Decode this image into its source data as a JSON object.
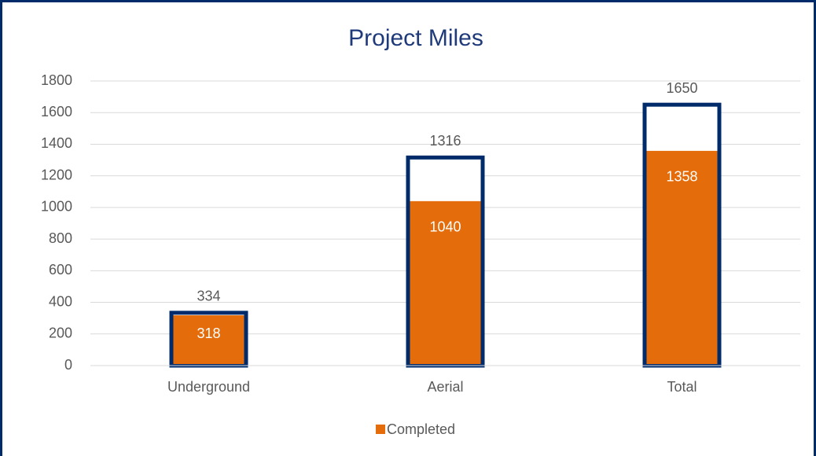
{
  "chart_data": {
    "type": "bar",
    "title": "Project Miles",
    "categories": [
      "Underground",
      "Aerial",
      "Total"
    ],
    "series": [
      {
        "color": "#002b6b",
        "values": [
          334,
          1316,
          1650
        ]
      },
      {
        "name": "Completed",
        "color": "#e46c0a",
        "values": [
          318,
          1040,
          1358
        ]
      }
    ],
    "ylim": [
      0,
      1800
    ],
    "yticks": [
      0,
      200,
      400,
      600,
      800,
      1000,
      1200,
      1400,
      1600,
      1800
    ],
    "grid": true,
    "legend": "bottom"
  }
}
